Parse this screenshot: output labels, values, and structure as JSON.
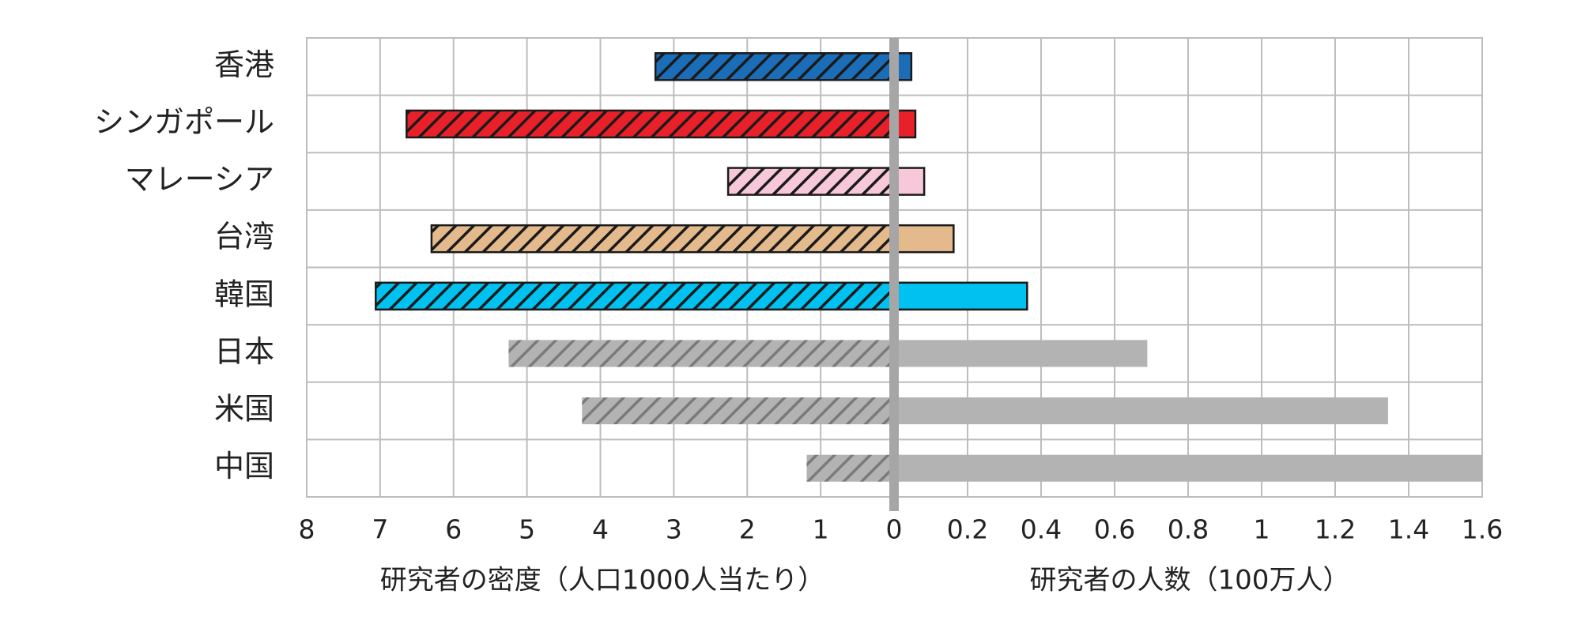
{
  "chart_data": [
    {
      "type": "bar",
      "orientation": "horizontal",
      "reversed": true,
      "hatch": true,
      "grid": true,
      "categories": [
        "香港",
        "シンガポール",
        "マレーシア",
        "台湾",
        "韓国",
        "日本",
        "米国",
        "中国"
      ],
      "values": [
        3.25,
        6.64,
        2.26,
        6.3,
        7.06,
        5.25,
        4.25,
        1.19
      ],
      "colors": [
        "#1b6db8",
        "#e8202a",
        "#f6c8da",
        "#e4ba8c",
        "#00c1ef",
        "#b3b3b3",
        "#b3b3b3",
        "#b3b3b3"
      ],
      "edge_colors": [
        "#1a1a1a",
        "#1a1a1a",
        "#1a1a1a",
        "#1a1a1a",
        "#1a1a1a",
        "none",
        "none",
        "none"
      ],
      "xlim": [
        0,
        8
      ],
      "xticks": [
        8,
        7,
        6,
        5,
        4,
        3,
        2,
        1,
        0
      ],
      "x_label": "研究者の密度（人口1000人当たり）"
    },
    {
      "type": "bar",
      "orientation": "horizontal",
      "reversed": false,
      "hatch": false,
      "grid": true,
      "values": [
        0.047,
        0.058,
        0.082,
        0.162,
        0.362,
        0.689,
        1.344,
        1.6
      ],
      "colors": [
        "#1b6db8",
        "#e8202a",
        "#f6c8da",
        "#e4ba8c",
        "#00c1ef",
        "#b3b3b3",
        "#b3b3b3",
        "#b3b3b3"
      ],
      "edge_colors": [
        "#1a1a1a",
        "#1a1a1a",
        "#1a1a1a",
        "#1a1a1a",
        "#1a1a1a",
        "none",
        "none",
        "none"
      ],
      "xlim": [
        0,
        1.6
      ],
      "xticks": [
        0.2,
        0.4,
        0.6,
        0.8,
        1,
        1.2,
        1.4,
        1.6
      ],
      "x_label": "研究者の人数（100万人）"
    }
  ]
}
